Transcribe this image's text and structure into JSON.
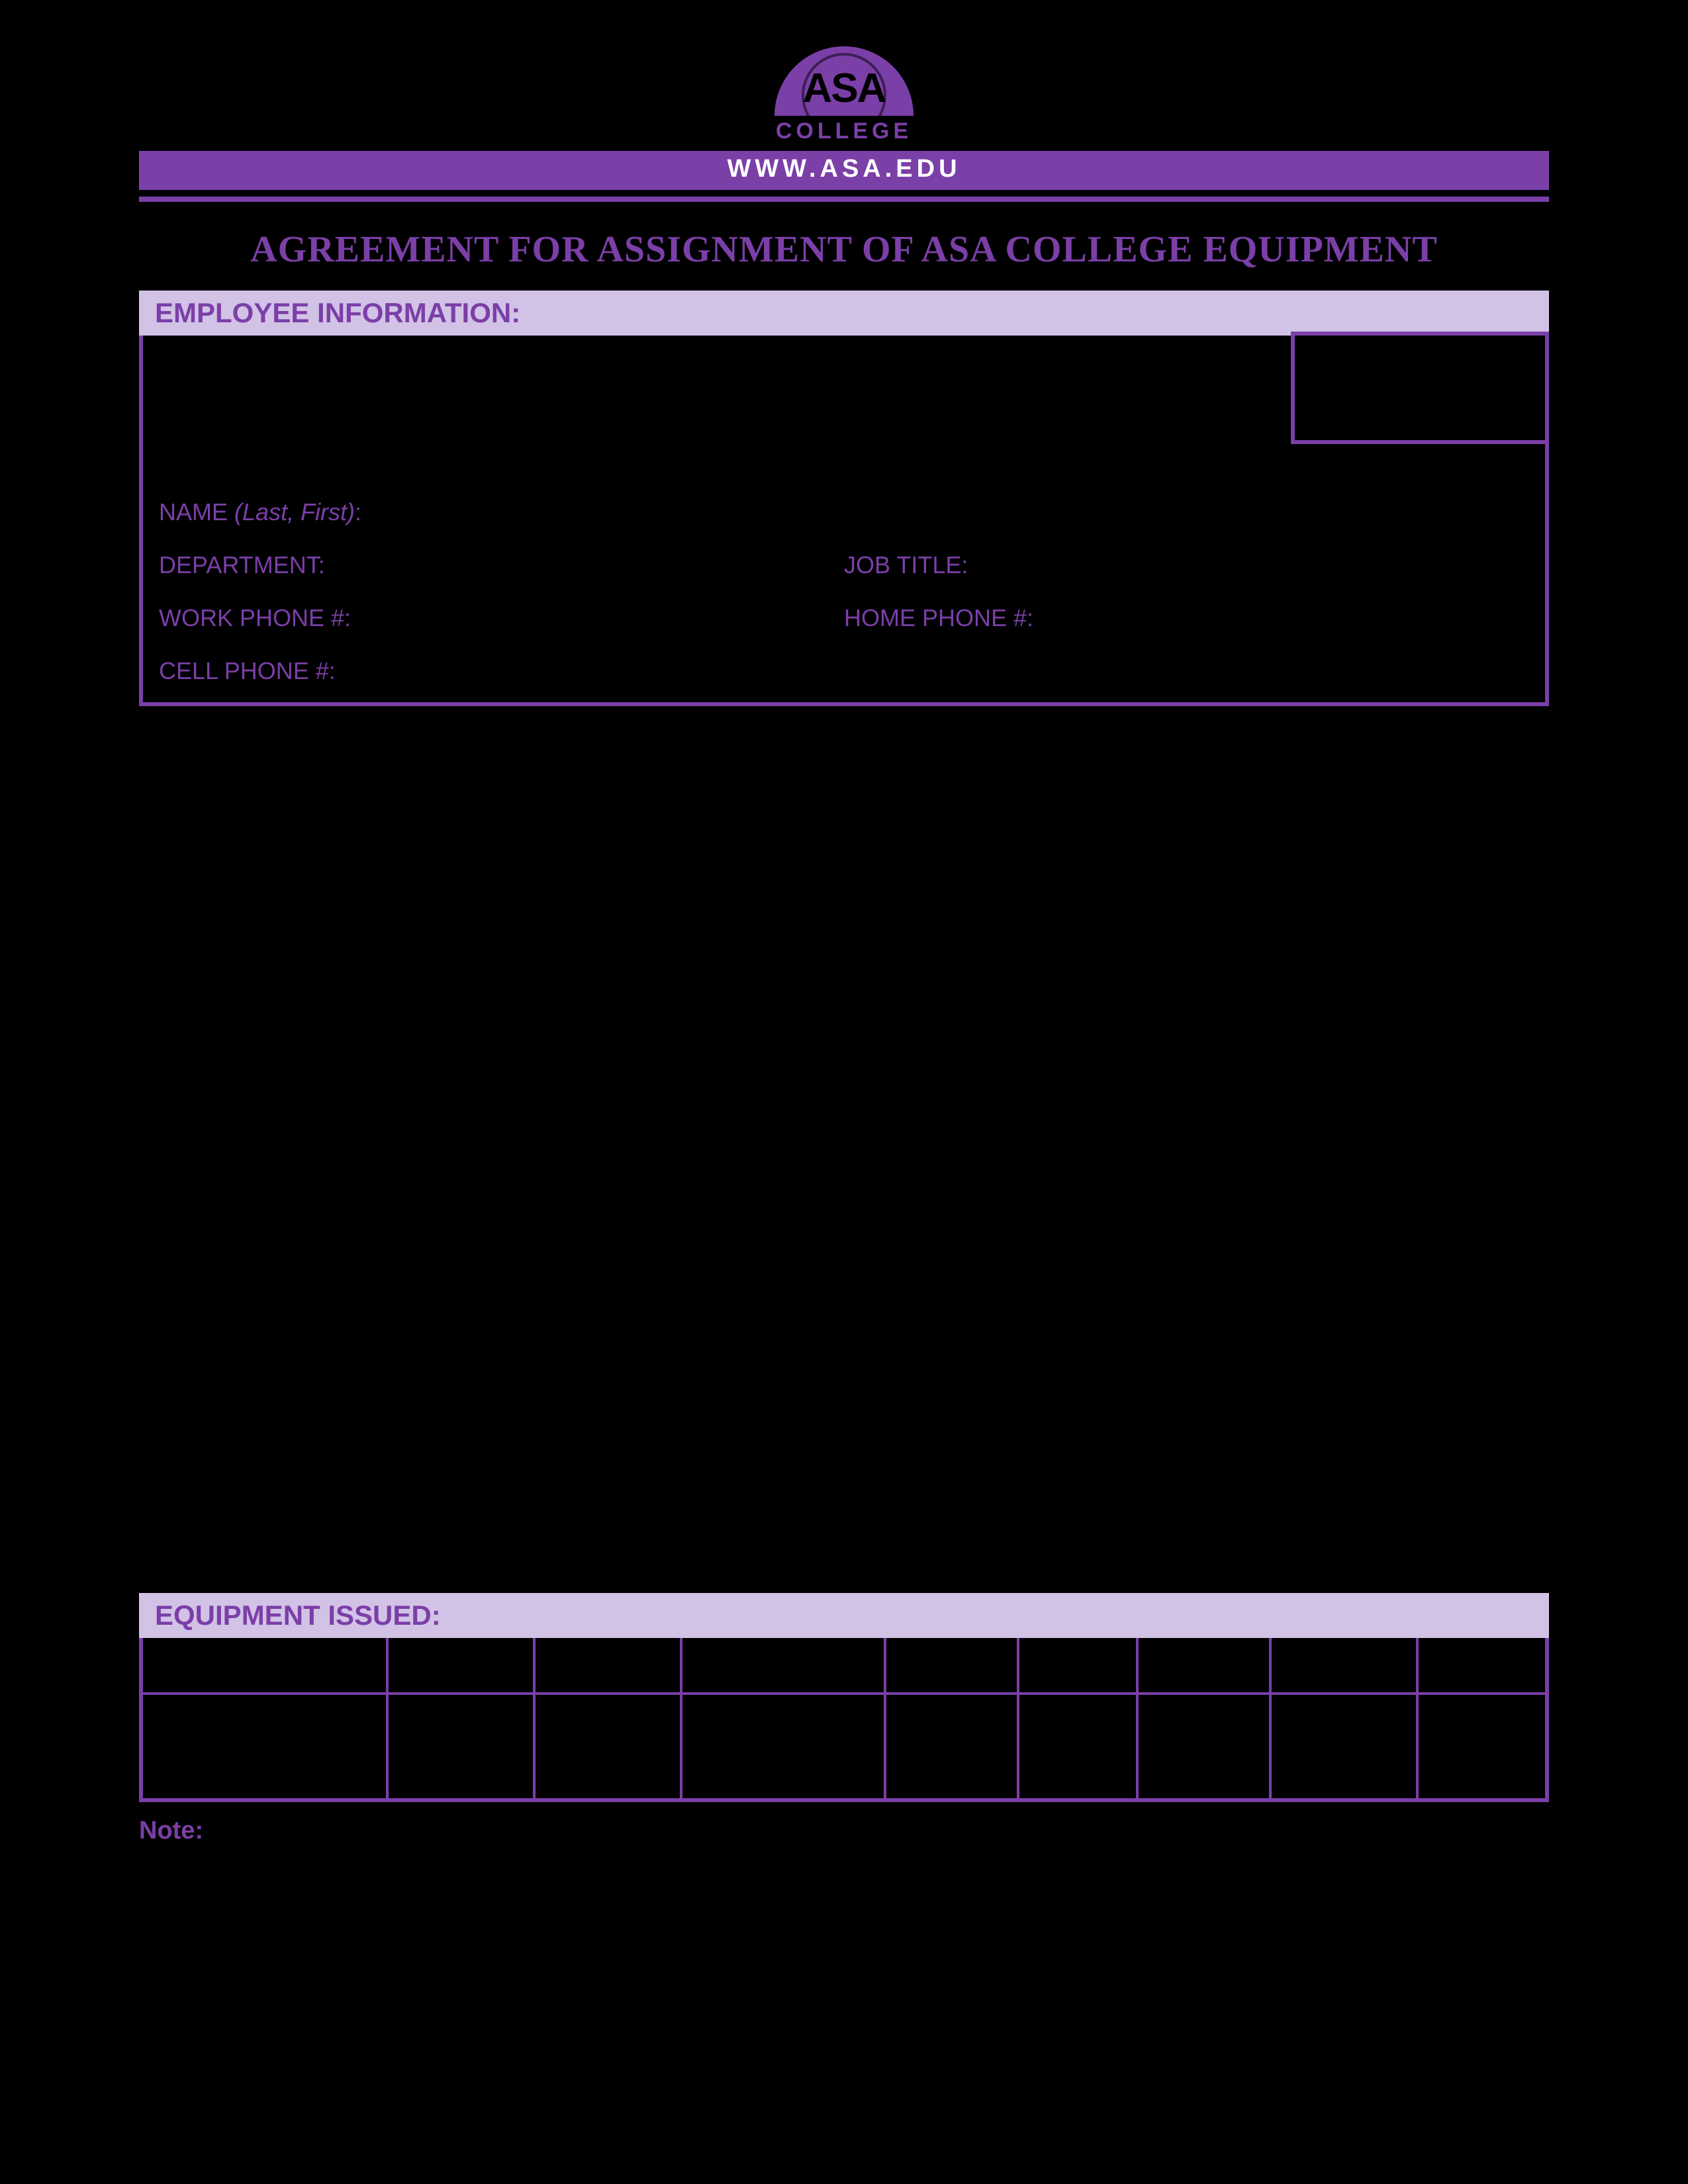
{
  "colors": {
    "background": "#000000",
    "primary": "#7b3fa8",
    "section_bar_bg": "#d2c2e6",
    "url_text": "#ffffff"
  },
  "logo": {
    "top_text": "ASA",
    "sub_text": "COLLEGE"
  },
  "header": {
    "url": "WWW.ASA.EDU"
  },
  "title": "AGREEMENT FOR ASSIGNMENT OF ASA COLLEGE EQUIPMENT",
  "sections": {
    "employee": {
      "heading": "EMPLOYEE INFORMATION:",
      "fields": {
        "name_label": "NAME",
        "name_hint": "(Last, First)",
        "name_colon": ":",
        "department_label": "DEPARTMENT:",
        "job_title_label": "JOB TITLE:",
        "work_phone_label": "WORK PHONE #:",
        "home_phone_label": "HOME PHONE #:",
        "cell_phone_label": "CELL PHONE #:"
      }
    },
    "equipment": {
      "heading": "EQUIPMENT ISSUED:",
      "columns": [
        "",
        "",
        "",
        "",
        "",
        "",
        "",
        "",
        ""
      ],
      "rows": [
        [
          "",
          "",
          "",
          "",
          "",
          "",
          "",
          "",
          ""
        ]
      ]
    }
  },
  "note_label": "Note:"
}
